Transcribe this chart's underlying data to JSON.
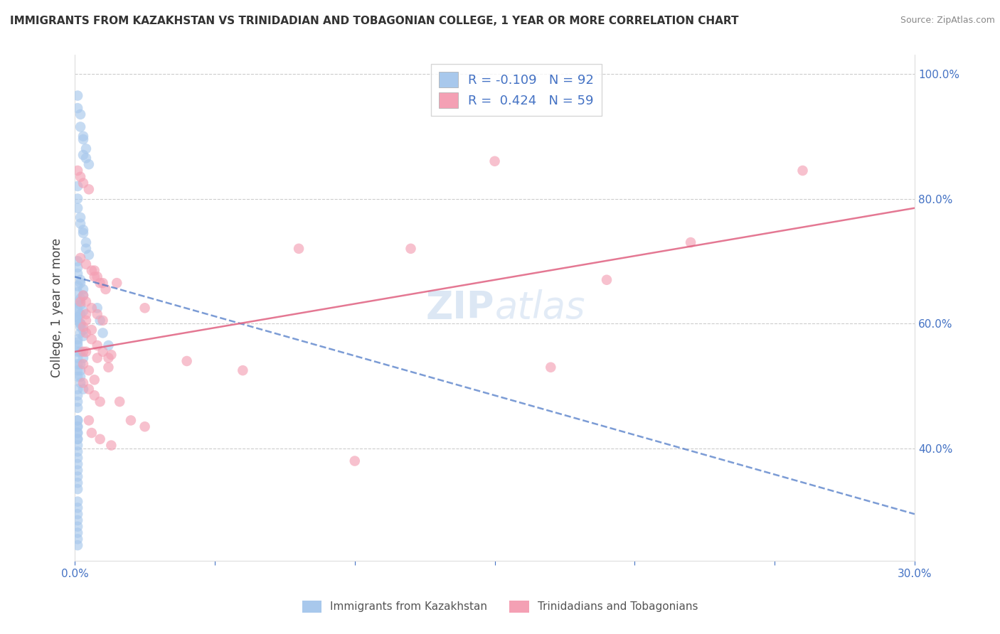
{
  "title": "IMMIGRANTS FROM KAZAKHSTAN VS TRINIDADIAN AND TOBAGONIAN COLLEGE, 1 YEAR OR MORE CORRELATION CHART",
  "source": "Source: ZipAtlas.com",
  "ylabel": "College, 1 year or more",
  "xlim": [
    0.0,
    0.3
  ],
  "ylim": [
    0.22,
    1.03
  ],
  "legend_label1": "Immigrants from Kazakhstan",
  "legend_label2": "Trinidadians and Tobagonians",
  "R1": -0.109,
  "N1": 92,
  "R2": 0.424,
  "N2": 59,
  "color_blue": "#A8C8EC",
  "color_pink": "#F4A0B4",
  "color_blue_line": "#4472C4",
  "color_pink_line": "#E06080",
  "watermark_zip": "ZIP",
  "watermark_atlas": "atlas",
  "blue_line_x0": 0.0,
  "blue_line_y0": 0.675,
  "blue_line_x1": 0.3,
  "blue_line_y1": 0.295,
  "pink_line_x0": 0.0,
  "pink_line_y0": 0.555,
  "pink_line_x1": 0.3,
  "pink_line_y1": 0.785,
  "grid_color": "#CCCCCC",
  "grid_linestyle": "--",
  "grid_linewidth": 0.8,
  "title_fontsize": 11,
  "source_fontsize": 9,
  "tick_fontsize": 11,
  "ylabel_fontsize": 12,
  "scatter_size": 110,
  "scatter_alpha": 0.65,
  "blue_scatter_x": [
    0.001,
    0.001,
    0.002,
    0.002,
    0.003,
    0.003,
    0.003,
    0.004,
    0.004,
    0.005,
    0.001,
    0.001,
    0.001,
    0.002,
    0.002,
    0.003,
    0.003,
    0.004,
    0.004,
    0.005,
    0.001,
    0.001,
    0.001,
    0.002,
    0.002,
    0.003,
    0.003,
    0.001,
    0.001,
    0.002,
    0.001,
    0.001,
    0.002,
    0.002,
    0.003,
    0.001,
    0.002,
    0.003,
    0.003,
    0.001,
    0.001,
    0.002,
    0.002,
    0.001,
    0.001,
    0.002,
    0.003,
    0.001,
    0.001,
    0.002,
    0.001,
    0.001,
    0.002,
    0.002,
    0.001,
    0.002,
    0.003,
    0.001,
    0.001,
    0.002,
    0.001,
    0.001,
    0.001,
    0.001,
    0.001,
    0.001,
    0.001,
    0.001,
    0.001,
    0.001,
    0.008,
    0.009,
    0.01,
    0.012,
    0.001,
    0.001,
    0.001,
    0.001,
    0.001,
    0.001,
    0.001,
    0.001,
    0.001,
    0.001,
    0.001,
    0.001,
    0.001,
    0.001,
    0.001,
    0.001,
    0.001,
    0.001
  ],
  "blue_scatter_y": [
    0.965,
    0.945,
    0.935,
    0.915,
    0.9,
    0.895,
    0.87,
    0.88,
    0.865,
    0.855,
    0.82,
    0.8,
    0.785,
    0.77,
    0.76,
    0.75,
    0.745,
    0.73,
    0.72,
    0.71,
    0.7,
    0.69,
    0.68,
    0.67,
    0.665,
    0.655,
    0.645,
    0.635,
    0.625,
    0.615,
    0.66,
    0.65,
    0.64,
    0.63,
    0.62,
    0.61,
    0.6,
    0.59,
    0.58,
    0.57,
    0.605,
    0.595,
    0.585,
    0.575,
    0.565,
    0.555,
    0.545,
    0.62,
    0.61,
    0.6,
    0.555,
    0.545,
    0.535,
    0.525,
    0.515,
    0.505,
    0.495,
    0.535,
    0.525,
    0.515,
    0.495,
    0.485,
    0.475,
    0.465,
    0.445,
    0.435,
    0.425,
    0.415,
    0.445,
    0.435,
    0.625,
    0.605,
    0.585,
    0.565,
    0.425,
    0.415,
    0.405,
    0.395,
    0.385,
    0.375,
    0.365,
    0.355,
    0.345,
    0.335,
    0.315,
    0.305,
    0.295,
    0.285,
    0.275,
    0.265,
    0.255,
    0.245
  ],
  "pink_scatter_x": [
    0.001,
    0.002,
    0.003,
    0.005,
    0.007,
    0.008,
    0.01,
    0.002,
    0.004,
    0.006,
    0.007,
    0.009,
    0.011,
    0.013,
    0.003,
    0.004,
    0.006,
    0.008,
    0.01,
    0.003,
    0.004,
    0.006,
    0.008,
    0.01,
    0.012,
    0.003,
    0.005,
    0.007,
    0.003,
    0.005,
    0.007,
    0.009,
    0.003,
    0.005,
    0.12,
    0.15,
    0.17,
    0.19,
    0.22,
    0.26,
    0.015,
    0.025,
    0.04,
    0.06,
    0.08,
    0.1,
    0.004,
    0.008,
    0.012,
    0.016,
    0.02,
    0.025,
    0.004,
    0.006,
    0.009,
    0.013,
    0.002,
    0.004,
    0.006
  ],
  "pink_scatter_y": [
    0.845,
    0.835,
    0.825,
    0.815,
    0.685,
    0.675,
    0.665,
    0.705,
    0.695,
    0.685,
    0.675,
    0.665,
    0.655,
    0.55,
    0.645,
    0.635,
    0.625,
    0.615,
    0.605,
    0.595,
    0.585,
    0.575,
    0.565,
    0.555,
    0.545,
    0.535,
    0.525,
    0.51,
    0.505,
    0.495,
    0.485,
    0.475,
    0.555,
    0.445,
    0.72,
    0.86,
    0.53,
    0.67,
    0.73,
    0.845,
    0.665,
    0.625,
    0.54,
    0.525,
    0.72,
    0.38,
    0.555,
    0.545,
    0.53,
    0.475,
    0.445,
    0.435,
    0.615,
    0.425,
    0.415,
    0.405,
    0.635,
    0.605,
    0.59
  ]
}
